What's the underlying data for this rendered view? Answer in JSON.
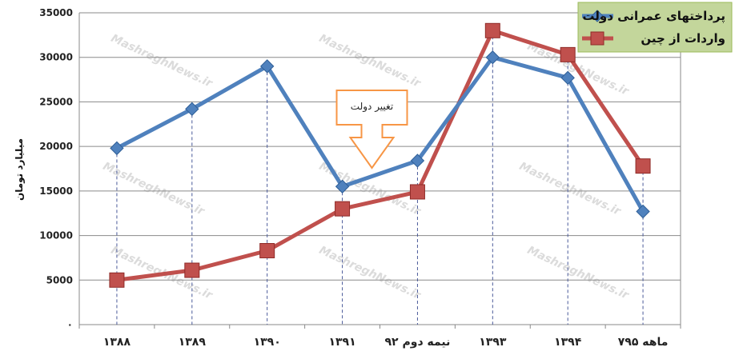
{
  "chart_data": {
    "type": "line",
    "title": "",
    "xlabel": "",
    "ylabel": "میلیارد تومان",
    "ylim": [
      0,
      35000
    ],
    "yticks": [
      "۰",
      "5000",
      "10000",
      "15000",
      "20000",
      "25000",
      "30000",
      "35000"
    ],
    "categories": [
      "۱۳۸۸",
      "۱۳۸۹",
      "۱۳۹۰",
      "۱۳۹۱",
      "نیمه دوم ۹۲",
      "۱۳۹۳",
      "۱۳۹۴",
      "۷ماهه ۹۵"
    ],
    "series": [
      {
        "name": "پرداختهای عمرانی دولت",
        "values": [
          19800,
          24200,
          29000,
          15500,
          18400,
          30000,
          27700,
          12700
        ],
        "color": "#4f81bd",
        "marker": "diamond"
      },
      {
        "name": "واردات از چین",
        "values": [
          5000,
          6100,
          8300,
          13000,
          14900,
          33000,
          30300,
          17800
        ],
        "color": "#c0504d",
        "marker": "square"
      }
    ],
    "grid": true,
    "legend_position": "top-right",
    "annotation": {
      "text": "تغییر دولت",
      "category_index": 3.5
    },
    "watermark": "MashreghNews.ir"
  }
}
